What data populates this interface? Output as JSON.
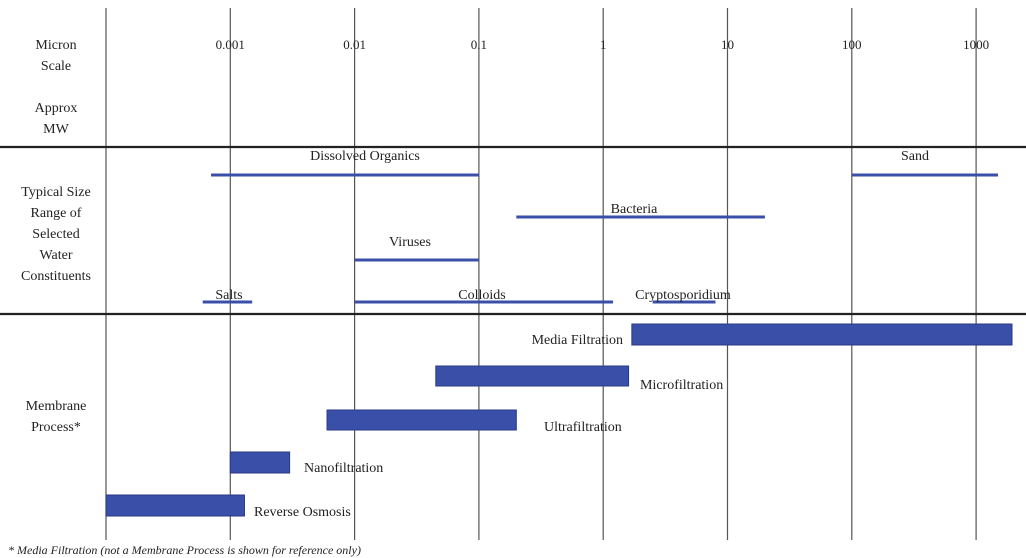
{
  "chart_data": {
    "type": "range-bar",
    "title": "",
    "scale": "log",
    "xlim": [
      0.0001,
      2000
    ],
    "ticks": [
      {
        "value": 0.001,
        "label": "0.001"
      },
      {
        "value": 0.01,
        "label": "0.01"
      },
      {
        "value": 0.1,
        "label": "0.1"
      },
      {
        "value": 1,
        "label": "1"
      },
      {
        "value": 10,
        "label": "10"
      },
      {
        "value": 100,
        "label": "100"
      },
      {
        "value": 1000,
        "label": "1000"
      }
    ],
    "row_labels": {
      "scale": [
        "Micron",
        "Scale"
      ],
      "mw": [
        "Approx",
        "MW"
      ],
      "constituents": [
        "Typical Size",
        "Range of",
        "Selected",
        "Water",
        "Constituents"
      ],
      "process": [
        "Membrane",
        "Process*"
      ]
    },
    "constituents": [
      {
        "name": "Dissolved Organics",
        "min": 0.0007,
        "max": 0.1
      },
      {
        "name": "Sand",
        "min": 100,
        "max": 1500
      },
      {
        "name": "Bacteria",
        "min": 0.2,
        "max": 20
      },
      {
        "name": "Viruses",
        "min": 0.01,
        "max": 0.1
      },
      {
        "name": "Salts",
        "min": 0.0006,
        "max": 0.0015
      },
      {
        "name": "Colloids",
        "min": 0.01,
        "max": 1.2
      },
      {
        "name": "Cryptosporidium",
        "min": 2.5,
        "max": 8
      }
    ],
    "processes": [
      {
        "name": "Media Filtration",
        "min": 1.7,
        "max": 2000
      },
      {
        "name": "Microfiltration",
        "min": 0.045,
        "max": 1.6
      },
      {
        "name": "Ultrafiltration",
        "min": 0.006,
        "max": 0.2
      },
      {
        "name": "Nanofiltration",
        "min": 0.001,
        "max": 0.003
      },
      {
        "name": "Reverse Osmosis",
        "min": 0.0001,
        "max": 0.0013
      }
    ],
    "footnote": "* Media Filtration (not a Membrane Process is shown for reference only)",
    "colors": {
      "bar": "#3a4fa8",
      "line": "#3a4fa8",
      "grid": "#555555",
      "divider": "#222222"
    }
  }
}
